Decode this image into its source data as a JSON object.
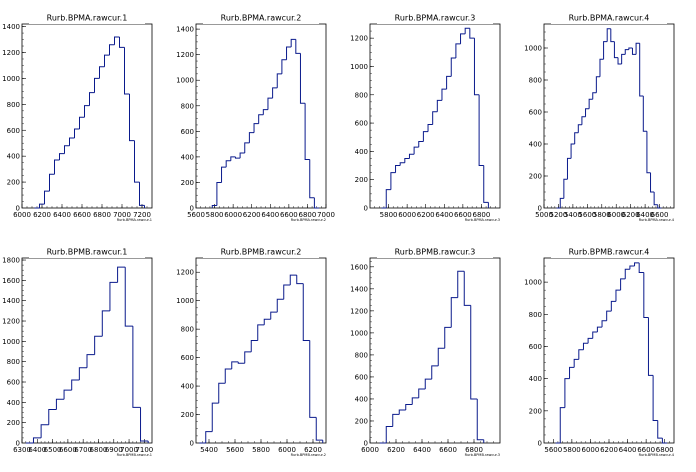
{
  "chart_data": [
    {
      "type": "histogram",
      "title": "Rurb.BPMA.rawcur.1",
      "xlabel": "Rurb.BPMA.rawcur.1",
      "ylabel": "",
      "xlim": [
        6000,
        7300
      ],
      "ylim": [
        0,
        1420
      ],
      "xticks": [
        "6000",
        "6200",
        "6400",
        "6600",
        "6800",
        "7000",
        "7200"
      ],
      "yticks": [
        "200",
        "400",
        "600",
        "800",
        "1000",
        "1200",
        "1400"
      ],
      "x": [
        6150,
        6200,
        6250,
        6300,
        6350,
        6400,
        6450,
        6500,
        6550,
        6600,
        6650,
        6700,
        6750,
        6800,
        6850,
        6900,
        6950,
        7000,
        7050,
        7100,
        7150,
        7200
      ],
      "values": [
        0,
        30,
        130,
        260,
        370,
        420,
        480,
        540,
        610,
        700,
        790,
        890,
        1000,
        1090,
        1180,
        1260,
        1320,
        1240,
        880,
        520,
        200,
        20
      ]
    },
    {
      "type": "histogram",
      "title": "Rurb.BPMA.rawcur.2",
      "xlabel": "Rurb.BPMA.rawcur.2",
      "ylabel": "",
      "xlim": [
        5600,
        7000
      ],
      "ylim": [
        0,
        1440
      ],
      "xticks": [
        "5600",
        "5800",
        "6000",
        "6200",
        "6400",
        "6600",
        "6800",
        "7000"
      ],
      "yticks": [
        "200",
        "400",
        "600",
        "800",
        "1000",
        "1200",
        "1400"
      ],
      "x": [
        5800,
        5850,
        5900,
        5950,
        6000,
        6050,
        6100,
        6150,
        6200,
        6250,
        6300,
        6350,
        6400,
        6450,
        6500,
        6550,
        6600,
        6650,
        6700,
        6750,
        6800,
        6850,
        6900
      ],
      "values": [
        20,
        200,
        320,
        370,
        400,
        390,
        430,
        510,
        590,
        660,
        730,
        770,
        860,
        940,
        1050,
        1160,
        1260,
        1320,
        1210,
        820,
        380,
        80,
        0
      ]
    },
    {
      "type": "histogram",
      "title": "Rurb.BPMA.rawcur.3",
      "xlabel": "Rurb.BPMA.rawcur.3",
      "ylabel": "",
      "xlim": [
        5600,
        7000
      ],
      "ylim": [
        0,
        1300
      ],
      "xticks": [
        "5800",
        "6000",
        "6200",
        "6400",
        "6600",
        "6800"
      ],
      "yticks": [
        "200",
        "400",
        "600",
        "800",
        "1000",
        "1200"
      ],
      "x": [
        5750,
        5800,
        5850,
        5900,
        5950,
        6000,
        6050,
        6100,
        6150,
        6200,
        6250,
        6300,
        6350,
        6400,
        6450,
        6500,
        6550,
        6600,
        6650,
        6700,
        6750,
        6800,
        6850
      ],
      "values": [
        0,
        130,
        250,
        300,
        320,
        350,
        380,
        430,
        470,
        540,
        590,
        680,
        760,
        840,
        930,
        1060,
        1160,
        1230,
        1270,
        1200,
        800,
        300,
        40
      ]
    },
    {
      "type": "histogram",
      "title": "Rurb.BPMA.rawcur.4",
      "xlabel": "Rurb.BPMA.rawcur.4",
      "ylabel": "",
      "xlim": [
        5000,
        6800
      ],
      "ylim": [
        0,
        1150
      ],
      "xticks": [
        "5000",
        "5200",
        "5400",
        "5600",
        "5800",
        "6000",
        "6200",
        "6400",
        "6600"
      ],
      "yticks": [
        "200",
        "400",
        "600",
        "800",
        "1000"
      ],
      "x": [
        5200,
        5250,
        5300,
        5350,
        5400,
        5450,
        5500,
        5550,
        5600,
        5650,
        5700,
        5750,
        5800,
        5850,
        5900,
        5950,
        6000,
        6050,
        6100,
        6150,
        6200,
        6250,
        6300,
        6350,
        6400,
        6450,
        6500,
        6550,
        6600
      ],
      "values": [
        0,
        60,
        180,
        310,
        400,
        470,
        520,
        570,
        620,
        680,
        720,
        820,
        930,
        1040,
        1120,
        1040,
        940,
        900,
        960,
        990,
        1000,
        960,
        1030,
        700,
        480,
        220,
        100,
        20,
        0
      ]
    },
    {
      "type": "histogram",
      "title": "Rurb.BPMB.rawcur.1",
      "xlabel": "Rurb.BPMB.rawcur.1",
      "ylabel": "",
      "xlim": [
        6300,
        7150
      ],
      "ylim": [
        0,
        1820
      ],
      "xticks": [
        "6300",
        "6400",
        "6500",
        "6600",
        "6700",
        "6800",
        "6900",
        "7000",
        "7100"
      ],
      "yticks": [
        "200",
        "400",
        "600",
        "800",
        "1000",
        "1200",
        "1400",
        "1600",
        "1800"
      ],
      "x": [
        6350,
        6400,
        6450,
        6500,
        6550,
        6600,
        6650,
        6700,
        6750,
        6800,
        6850,
        6900,
        6950,
        7000,
        7050,
        7100
      ],
      "values": [
        0,
        50,
        180,
        330,
        430,
        520,
        620,
        740,
        870,
        1050,
        1300,
        1580,
        1730,
        1150,
        350,
        20
      ]
    },
    {
      "type": "histogram",
      "title": "Rurb.BPMB.rawcur.2",
      "xlabel": "Rurb.BPMB.rawcur.2",
      "ylabel": "",
      "xlim": [
        5300,
        6300
      ],
      "ylim": [
        0,
        1300
      ],
      "xticks": [
        "5400",
        "5600",
        "5800",
        "6000",
        "6200"
      ],
      "yticks": [
        "200",
        "400",
        "600",
        "800",
        "1000",
        "1200"
      ],
      "x": [
        5350,
        5400,
        5450,
        5500,
        5550,
        5600,
        5650,
        5700,
        5750,
        5800,
        5850,
        5900,
        5950,
        6000,
        6050,
        6100,
        6150,
        6200,
        6250
      ],
      "values": [
        0,
        80,
        280,
        420,
        520,
        570,
        560,
        640,
        720,
        830,
        870,
        920,
        1010,
        1110,
        1180,
        1120,
        720,
        180,
        20
      ]
    },
    {
      "type": "histogram",
      "title": "Rurb.BPMB.rawcur.3",
      "xlabel": "Rurb.BPMB.rawcur.3",
      "ylabel": "",
      "xlim": [
        6000,
        7000
      ],
      "ylim": [
        0,
        1680
      ],
      "xticks": [
        "6000",
        "6200",
        "6400",
        "6600",
        "6800"
      ],
      "yticks": [
        "200",
        "400",
        "600",
        "800",
        "1000",
        "1200",
        "1400",
        "1600"
      ],
      "x": [
        6100,
        6150,
        6200,
        6250,
        6300,
        6350,
        6400,
        6450,
        6500,
        6550,
        6600,
        6650,
        6700,
        6750,
        6800,
        6850
      ],
      "values": [
        0,
        150,
        260,
        300,
        350,
        410,
        490,
        580,
        700,
        860,
        1050,
        1320,
        1560,
        1250,
        400,
        30
      ]
    },
    {
      "type": "histogram",
      "title": "Rurb.BPMB.rawcur.4",
      "xlabel": "Rurb.BPMB.rawcur.4",
      "ylabel": "",
      "xlim": [
        5500,
        6900
      ],
      "ylim": [
        0,
        1150
      ],
      "xticks": [
        "5600",
        "5800",
        "6000",
        "6200",
        "6400",
        "6600",
        "6800"
      ],
      "yticks": [
        "200",
        "400",
        "600",
        "800",
        "1000"
      ],
      "x": [
        5650,
        5700,
        5750,
        5800,
        5850,
        5900,
        5950,
        6000,
        6050,
        6100,
        6150,
        6200,
        6250,
        6300,
        6350,
        6400,
        6450,
        6500,
        6550,
        6600,
        6650,
        6700,
        6750,
        6800
      ],
      "values": [
        0,
        220,
        400,
        470,
        520,
        580,
        620,
        650,
        690,
        720,
        760,
        820,
        880,
        950,
        1020,
        1080,
        1100,
        1120,
        1060,
        780,
        420,
        140,
        30,
        0
      ]
    }
  ]
}
